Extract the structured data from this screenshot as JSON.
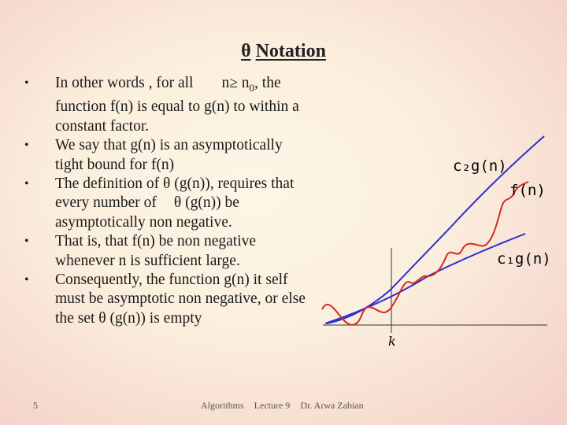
{
  "slide": {
    "title_symbol": "θ",
    "title_text": "Notation",
    "bullets": [
      {
        "pre": "In other words , for all",
        "cond": "n≥ n",
        "sub": "0",
        "post": ", the function f(n) is equal to g(n) to within a constant factor."
      },
      {
        "text": "We say that g(n) is an asymptotically tight bound for f(n)"
      },
      {
        "pre": "The definition of θ (g(n)), requires that every number of",
        "post": "θ (g(n)) be asymptotically non negative."
      },
      {
        "text": "That is, that f(n) be non negative whenever n is sufficient large."
      },
      {
        "text": "Consequently, the function g(n) it self must be asymptotic non negative, or else the set θ (g(n)) is empty"
      }
    ],
    "graph": {
      "upper_label": "c₂g(n)",
      "middle_label": "f(n)",
      "lower_label": "c₁g(n)",
      "x_label": "k",
      "upper_color": "#2b2fd1",
      "middle_color": "#d42a1c",
      "lower_color": "#2b2fd1"
    },
    "footer": {
      "page_number": "5",
      "course": "Algorithms",
      "lecture": "Lecture 9",
      "author": "Dr. Arwa Zabian"
    }
  }
}
